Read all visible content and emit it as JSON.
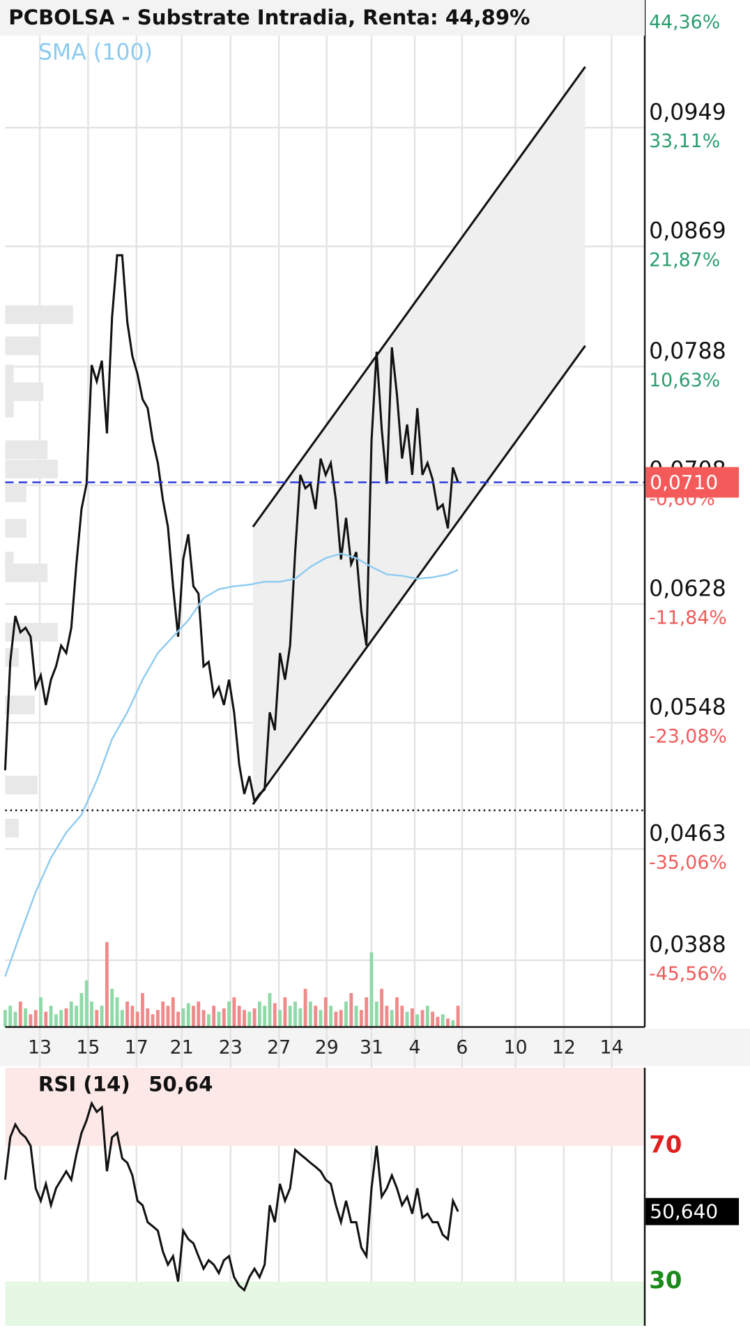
{
  "chart_data": [
    {
      "type": "line",
      "title": "PCBOLSA - Substrate Intradia, Renta: 44,89%",
      "xlim": [
        0,
        125.7
      ],
      "xticks": [
        {
          "value": 6.8,
          "label": "13"
        },
        {
          "value": 16.3,
          "label": "15"
        },
        {
          "value": 25.8,
          "label": "17"
        },
        {
          "value": 34.7,
          "label": "21"
        },
        {
          "value": 44.3,
          "label": "23"
        },
        {
          "value": 53.8,
          "label": "27"
        },
        {
          "value": 63.2,
          "label": "29"
        },
        {
          "value": 72,
          "label": "31"
        },
        {
          "value": 80.5,
          "label": "4"
        },
        {
          "value": 89.8,
          "label": "6"
        },
        {
          "value": 100.3,
          "label": "10"
        },
        {
          "value": 109.8,
          "label": "12"
        },
        {
          "value": 119.2,
          "label": "14"
        }
      ],
      "ylim": [
        0.0343,
        0.1035
      ],
      "yticks": [
        {
          "value": 0.0949,
          "label": "0,0949"
        },
        {
          "value": 0.0869,
          "label": "0,0869"
        },
        {
          "value": 0.0788,
          "label": "0,0788"
        },
        {
          "value": 0.0708,
          "label": "0,0708"
        },
        {
          "value": 0.0628,
          "label": "0,0628"
        },
        {
          "value": 0.0548,
          "label": "0,0548"
        },
        {
          "value": 0.0463,
          "label": "0,0463"
        },
        {
          "value": 0.0388,
          "label": "0,0388"
        }
      ],
      "returns": [
        {
          "value": 44.36,
          "label": "44,36%"
        },
        {
          "value": 33.11,
          "label": "33,11%"
        },
        {
          "value": 21.87,
          "label": "21,87%"
        },
        {
          "value": 10.63,
          "label": "10,63%"
        },
        {
          "value": -0.6,
          "label": "-0,60%"
        },
        {
          "value": -11.84,
          "label": "-11,84%"
        },
        {
          "value": -23.08,
          "label": "-23,08%"
        },
        {
          "value": -35.06,
          "label": "-35,06%"
        },
        {
          "value": -45.56,
          "label": "-45,56%"
        }
      ],
      "grid": true,
      "series": [
        {
          "color": "#111111",
          "x": [
            0,
            1,
            2,
            3,
            4,
            5,
            6,
            7,
            8,
            9,
            10,
            11,
            12,
            13,
            14,
            15,
            16,
            17,
            18,
            19,
            20,
            21,
            22,
            23,
            24,
            25,
            26,
            27,
            28,
            29,
            30,
            31,
            32,
            33,
            34,
            35,
            36,
            37,
            38,
            39,
            40,
            41,
            42,
            43,
            44,
            45,
            46,
            47,
            48,
            49,
            50,
            51,
            52,
            53,
            54,
            55,
            56,
            57,
            58,
            59,
            60,
            61,
            62,
            63,
            64,
            65,
            66,
            67,
            68,
            69,
            70,
            71,
            72,
            73,
            74,
            75,
            76,
            77,
            78,
            79,
            80,
            81,
            82,
            83,
            84,
            85,
            86,
            87,
            88,
            89
          ],
          "values": [
            0.0516,
            0.0589,
            0.062,
            0.0609,
            0.0612,
            0.0606,
            0.0572,
            0.058,
            0.056,
            0.0577,
            0.0586,
            0.06,
            0.0595,
            0.0612,
            0.0655,
            0.0692,
            0.0709,
            0.0789,
            0.0778,
            0.0792,
            0.0743,
            0.0821,
            0.0863,
            0.0863,
            0.0818,
            0.0795,
            0.0783,
            0.0766,
            0.076,
            0.0738,
            0.0723,
            0.0698,
            0.068,
            0.064,
            0.0606,
            0.0658,
            0.0675,
            0.064,
            0.0635,
            0.0586,
            0.0589,
            0.0566,
            0.0572,
            0.056,
            0.0577,
            0.0555,
            0.052,
            0.05,
            0.0512,
            0.0495,
            0.05,
            0.0503,
            0.0555,
            0.0543,
            0.0595,
            0.0577,
            0.06,
            0.0663,
            0.0715,
            0.0706,
            0.0709,
            0.0692,
            0.0726,
            0.0715,
            0.0723,
            0.0698,
            0.0658,
            0.0686,
            0.0655,
            0.0663,
            0.0623,
            0.06,
            0.0738,
            0.0798,
            0.0746,
            0.0709,
            0.0801,
            0.0769,
            0.0726,
            0.0749,
            0.0715,
            0.076,
            0.0715,
            0.0723,
            0.0712,
            0.0692,
            0.0695,
            0.0679,
            0.072,
            0.071
          ]
        },
        {
          "name": "SMA (100)",
          "color": "#8ecbf0",
          "x": [
            0,
            3,
            6,
            9,
            12,
            15,
            18,
            21,
            24,
            27,
            30,
            33,
            36,
            39,
            42,
            45,
            48,
            51,
            54,
            57,
            60,
            63,
            66,
            69,
            72,
            75,
            78,
            81,
            84,
            87,
            89
          ],
          "values": [
            0.0377,
            0.0406,
            0.0434,
            0.0457,
            0.0474,
            0.0486,
            0.0509,
            0.0537,
            0.0555,
            0.0577,
            0.0595,
            0.0606,
            0.0617,
            0.0632,
            0.0638,
            0.064,
            0.0641,
            0.0643,
            0.0643,
            0.0645,
            0.0653,
            0.0659,
            0.0662,
            0.0659,
            0.0653,
            0.0648,
            0.0647,
            0.0645,
            0.0646,
            0.0648,
            0.0651
          ]
        }
      ],
      "channel": {
        "x": [
          48.7,
          114
        ],
        "upper": [
          0.068,
          0.099
        ],
        "lower": [
          0.0493,
          0.0802
        ],
        "color": "#efefef"
      },
      "volume": {
        "vlim": [
          0,
          100
        ],
        "up_color": "#8fd9a8",
        "down_color": "#f08a8a",
        "values": [
          20,
          25,
          18,
          30,
          22,
          15,
          20,
          35,
          18,
          25,
          15,
          20,
          22,
          30,
          25,
          40,
          55,
          30,
          20,
          25,
          100,
          45,
          35,
          20,
          30,
          25,
          18,
          40,
          22,
          15,
          20,
          30,
          25,
          35,
          18,
          22,
          28,
          25,
          30,
          20,
          15,
          25,
          18,
          22,
          30,
          35,
          25,
          20,
          18,
          22,
          30,
          25,
          40,
          28,
          20,
          35,
          25,
          30,
          22,
          45,
          30,
          25,
          20,
          35,
          25,
          18,
          20,
          30,
          40,
          25,
          20,
          35,
          88,
          30,
          45,
          25,
          20,
          35,
          25,
          18,
          22,
          15,
          20,
          25,
          18,
          12,
          15,
          10,
          8,
          25
        ]
      },
      "profile": {
        "color": "#e8e8e8",
        "wlim": [
          0,
          100
        ],
        "prices": [
          0.0823,
          0.0802,
          0.0783,
          0.0771,
          0.076,
          0.0732,
          0.0719,
          0.0703,
          0.0679,
          0.0657,
          0.0649,
          0.0609,
          0.0592,
          0.056,
          0.0506,
          0.0477
        ],
        "widths": [
          80,
          42,
          10,
          45,
          10,
          50,
          62,
          25,
          25,
          10,
          50,
          62,
          16,
          35,
          38,
          16
        ]
      },
      "last_price": {
        "value": 0.071,
        "label": "0,0710",
        "color": "#f55a5a"
      },
      "low_line": 0.0489
    },
    {
      "type": "line",
      "title": "RSI (14)",
      "value_label": {
        "value": 50.64,
        "label": "50,64"
      },
      "last_label": {
        "value": 50.64,
        "label": "50,640"
      },
      "xlim": [
        0,
        125.7
      ],
      "ylim": [
        17,
        93
      ],
      "levels": [
        70,
        30
      ],
      "zones": [
        {
          "from": 70,
          "to": 93,
          "color": "#fde8e8"
        },
        {
          "from": 17,
          "to": 30,
          "color": "#e4f8e4"
        }
      ],
      "series": [
        {
          "color": "#111111",
          "x": [
            0,
            1,
            2,
            3,
            4,
            5,
            6,
            7,
            8,
            9,
            10,
            11,
            12,
            13,
            14,
            15,
            16,
            17,
            18,
            19,
            20,
            21,
            22,
            23,
            24,
            25,
            26,
            27,
            28,
            29,
            30,
            31,
            32,
            33,
            34,
            35,
            36,
            37,
            38,
            39,
            40,
            41,
            42,
            43,
            44,
            45,
            46,
            47,
            48,
            49,
            50,
            51,
            52,
            53,
            54,
            55,
            56,
            57,
            58,
            59,
            60,
            61,
            62,
            63,
            64,
            65,
            66,
            67,
            68,
            69,
            70,
            71,
            72,
            73,
            74,
            75,
            76,
            77,
            78,
            79,
            80,
            81,
            82,
            83,
            84,
            85,
            86,
            87,
            88,
            89
          ],
          "values": [
            60,
            72.5,
            76.3,
            73.8,
            72.5,
            70,
            57.5,
            53.8,
            58.8,
            52.5,
            57.5,
            60,
            62.5,
            60,
            67.5,
            73.8,
            77.5,
            82.5,
            80,
            81.3,
            62.5,
            72.5,
            73.8,
            66.3,
            65,
            61.3,
            53.8,
            52.5,
            47.5,
            46.3,
            45,
            38.8,
            35,
            37.5,
            30,
            45,
            42.5,
            41.3,
            37.5,
            33.8,
            36.3,
            35,
            32.5,
            36.3,
            37.5,
            31.3,
            28.8,
            27.5,
            31.3,
            33.8,
            31.3,
            35,
            52.5,
            47.5,
            58.8,
            53.8,
            57.5,
            68.8,
            67.5,
            66.3,
            65,
            63.8,
            62.5,
            60,
            58.8,
            52.5,
            47.5,
            53.8,
            47.5,
            47.5,
            40,
            37.5,
            57.5,
            70,
            55,
            57.5,
            61.3,
            57.5,
            52.5,
            55,
            50,
            57.5,
            48.8,
            50,
            47.5,
            47.5,
            43.8,
            42.5,
            53.8,
            50.64
          ]
        }
      ]
    }
  ]
}
